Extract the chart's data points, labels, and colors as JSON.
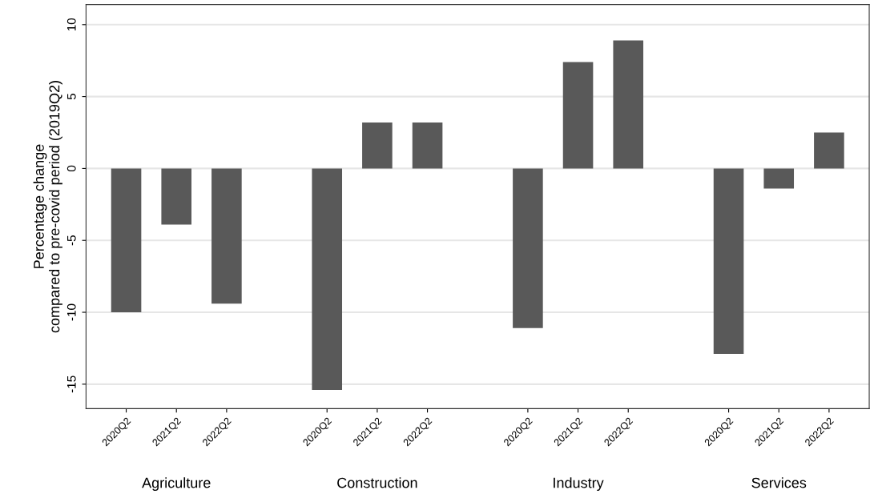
{
  "chart_data": {
    "type": "bar",
    "ylabel": "Percentage change\ncompared to pre-covid period (2019Q2)",
    "categories": [
      "2020Q2",
      "2021Q2",
      "2022Q2",
      null,
      "2020Q2",
      "2021Q2",
      "2022Q2",
      null,
      "2020Q2",
      "2021Q2",
      "2022Q2",
      null,
      "2020Q2",
      "2021Q2",
      "2022Q2"
    ],
    "values": [
      -10.0,
      -3.9,
      -9.4,
      null,
      -15.4,
      3.2,
      3.2,
      null,
      -11.1,
      7.4,
      8.9,
      null,
      -12.9,
      -1.4,
      2.5
    ],
    "color": "#595959",
    "annotations": [
      "Agriculture",
      "Construction",
      "Industry",
      "Services"
    ],
    "ylim": [
      -16.7,
      11.4
    ],
    "yticks": [
      -15,
      -10,
      -5,
      0,
      5,
      10
    ],
    "grid": "y",
    "legend": false
  }
}
